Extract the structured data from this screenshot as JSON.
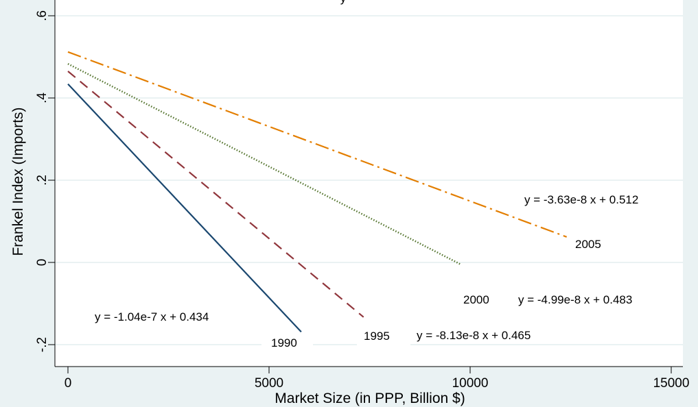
{
  "chart_data": {
    "type": "line",
    "title": "",
    "title_visible_fragment": "y",
    "xlabel": "Market Size (in PPP, Billion $)",
    "ylabel": "Frankel Index (Imports)",
    "xlim": [
      0,
      15000
    ],
    "ylim": [
      -0.2,
      0.6
    ],
    "x_ticks": [
      0,
      5000,
      10000,
      15000
    ],
    "x_tick_labels": [
      "0",
      "5000",
      "10000",
      "15000"
    ],
    "y_ticks": [
      -0.2,
      0,
      0.2,
      0.4,
      0.6
    ],
    "y_tick_labels": [
      "-.2",
      "0",
      ".2",
      ".4",
      ".6"
    ],
    "grid": "horizontal",
    "background": "#eaf2f3",
    "plot_background": "#ffffff",
    "grid_color": "#eaf2f3",
    "series": [
      {
        "name": "1990",
        "color": "#1a476f",
        "dash": "solid",
        "x": [
          0,
          5800
        ],
        "y": [
          0.434,
          -0.169
        ],
        "equation": "y = -1.04e-7 x + 0.434"
      },
      {
        "name": "1995",
        "color": "#90353b",
        "dash": "dash",
        "x": [
          0,
          7350
        ],
        "y": [
          0.465,
          -0.133
        ],
        "equation": "y = -8.13e-8 x + 0.465"
      },
      {
        "name": "2000",
        "color": "#55752f",
        "dash": "dot",
        "x": [
          0,
          9750
        ],
        "y": [
          0.483,
          -0.004
        ],
        "equation": "y = -4.99e-8 x + 0.483"
      },
      {
        "name": "2005",
        "color": "#e37e00",
        "dash": "dashdot",
        "x": [
          0,
          12400
        ],
        "y": [
          0.512,
          0.062
        ],
        "equation": "y = -3.63e-8 x + 0.512"
      }
    ]
  }
}
